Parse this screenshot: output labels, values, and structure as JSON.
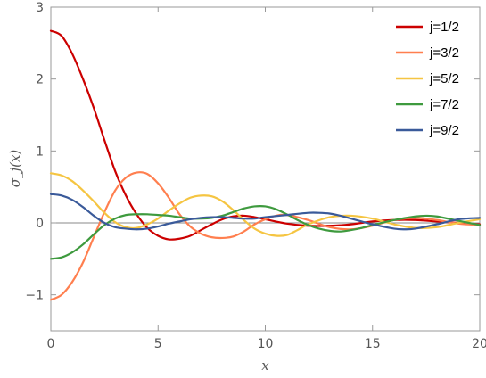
{
  "chart_data": {
    "type": "line",
    "xlabel": "x",
    "ylabel": "σ_j(x)",
    "xlim": [
      0,
      20
    ],
    "ylim": [
      -1.5,
      3
    ],
    "x_ticks": [
      0,
      5,
      10,
      15,
      20
    ],
    "y_ticks": [
      -1,
      0,
      1,
      2,
      3
    ],
    "x_tick_labels": [
      "0",
      "5",
      "10",
      "15",
      "20"
    ],
    "y_tick_labels": [
      "−1",
      "0",
      "1",
      "2",
      "3"
    ],
    "zero_line": true,
    "grid": false,
    "legend_position": "top-right",
    "series": [
      {
        "name": "j=1/2",
        "color": "#cc0000",
        "x": [
          0,
          0.5,
          1,
          1.5,
          2,
          2.5,
          3,
          3.5,
          4,
          4.5,
          5,
          5.5,
          6,
          6.5,
          7,
          7.5,
          8,
          8.5,
          9,
          9.5,
          10,
          11,
          12,
          13,
          14,
          15,
          16,
          17,
          18,
          19,
          20
        ],
        "values": [
          2.67,
          2.6,
          2.35,
          2.0,
          1.6,
          1.15,
          0.72,
          0.38,
          0.12,
          -0.07,
          -0.18,
          -0.23,
          -0.22,
          -0.18,
          -0.1,
          -0.02,
          0.05,
          0.09,
          0.1,
          0.08,
          0.05,
          -0.01,
          -0.04,
          -0.04,
          -0.02,
          0.02,
          0.04,
          0.04,
          0.02,
          0.0,
          -0.02
        ]
      },
      {
        "name": "j=3/2",
        "color": "#ff7f4f",
        "x": [
          0,
          0.5,
          1,
          1.5,
          2,
          2.5,
          3,
          3.5,
          4,
          4.5,
          5,
          5.5,
          6,
          6.5,
          7,
          7.5,
          8,
          8.5,
          9,
          9.5,
          10,
          10.5,
          11,
          12,
          13,
          14,
          15,
          16,
          17,
          18,
          19,
          20
        ],
        "values": [
          -1.07,
          -1.0,
          -0.82,
          -0.55,
          -0.2,
          0.15,
          0.45,
          0.63,
          0.7,
          0.68,
          0.55,
          0.35,
          0.12,
          -0.05,
          -0.15,
          -0.2,
          -0.21,
          -0.19,
          -0.12,
          -0.02,
          0.05,
          0.1,
          0.11,
          0.04,
          -0.06,
          -0.09,
          -0.04,
          0.04,
          0.07,
          0.04,
          -0.01,
          -0.03
        ]
      },
      {
        "name": "j=5/2",
        "color": "#f5c542",
        "x": [
          0,
          0.5,
          1,
          1.5,
          2,
          2.5,
          3,
          3.5,
          4,
          4.5,
          5,
          5.5,
          6,
          6.5,
          7,
          7.5,
          8,
          8.5,
          9,
          9.5,
          10,
          10.5,
          11,
          11.5,
          12,
          13,
          14,
          15,
          16,
          17,
          18,
          19,
          20
        ],
        "values": [
          0.69,
          0.66,
          0.58,
          0.45,
          0.3,
          0.14,
          0.01,
          -0.06,
          -0.07,
          -0.02,
          0.06,
          0.17,
          0.27,
          0.35,
          0.38,
          0.37,
          0.3,
          0.18,
          0.04,
          -0.08,
          -0.15,
          -0.18,
          -0.17,
          -0.1,
          -0.02,
          0.08,
          0.1,
          0.06,
          -0.02,
          -0.07,
          -0.06,
          0.0,
          0.05
        ]
      },
      {
        "name": "j=7/2",
        "color": "#3e9a3e",
        "x": [
          0,
          0.5,
          1,
          1.5,
          2,
          2.5,
          3,
          3.5,
          4,
          4.5,
          5,
          5.5,
          6,
          6.5,
          7,
          7.5,
          8,
          8.5,
          9,
          9.5,
          10,
          10.5,
          11,
          11.5,
          12,
          12.5,
          13,
          13.5,
          14,
          14.5,
          15,
          16,
          17,
          17.5,
          18,
          19,
          20
        ],
        "values": [
          -0.5,
          -0.48,
          -0.41,
          -0.3,
          -0.16,
          -0.03,
          0.06,
          0.11,
          0.12,
          0.12,
          0.11,
          0.1,
          0.08,
          0.06,
          0.06,
          0.07,
          0.1,
          0.15,
          0.2,
          0.23,
          0.23,
          0.19,
          0.12,
          0.04,
          -0.03,
          -0.08,
          -0.11,
          -0.12,
          -0.1,
          -0.07,
          -0.03,
          0.04,
          0.09,
          0.1,
          0.09,
          0.03,
          -0.03
        ]
      },
      {
        "name": "j=9/2",
        "color": "#3a5a9a",
        "x": [
          0,
          0.5,
          1,
          1.5,
          2,
          2.5,
          3,
          3.5,
          4,
          4.5,
          5,
          5.5,
          6,
          6.5,
          7,
          7.5,
          8,
          8.5,
          9,
          9.5,
          10,
          11,
          12,
          12.5,
          13,
          13.5,
          14,
          14.5,
          15,
          16,
          16.5,
          17,
          18,
          19,
          20
        ],
        "values": [
          0.4,
          0.38,
          0.32,
          0.22,
          0.1,
          0.0,
          -0.06,
          -0.08,
          -0.09,
          -0.08,
          -0.05,
          -0.01,
          0.02,
          0.05,
          0.07,
          0.08,
          0.08,
          0.07,
          0.06,
          0.06,
          0.08,
          0.11,
          0.14,
          0.14,
          0.13,
          0.1,
          0.06,
          0.02,
          -0.02,
          -0.08,
          -0.09,
          -0.08,
          -0.02,
          0.05,
          0.07
        ]
      }
    ]
  }
}
